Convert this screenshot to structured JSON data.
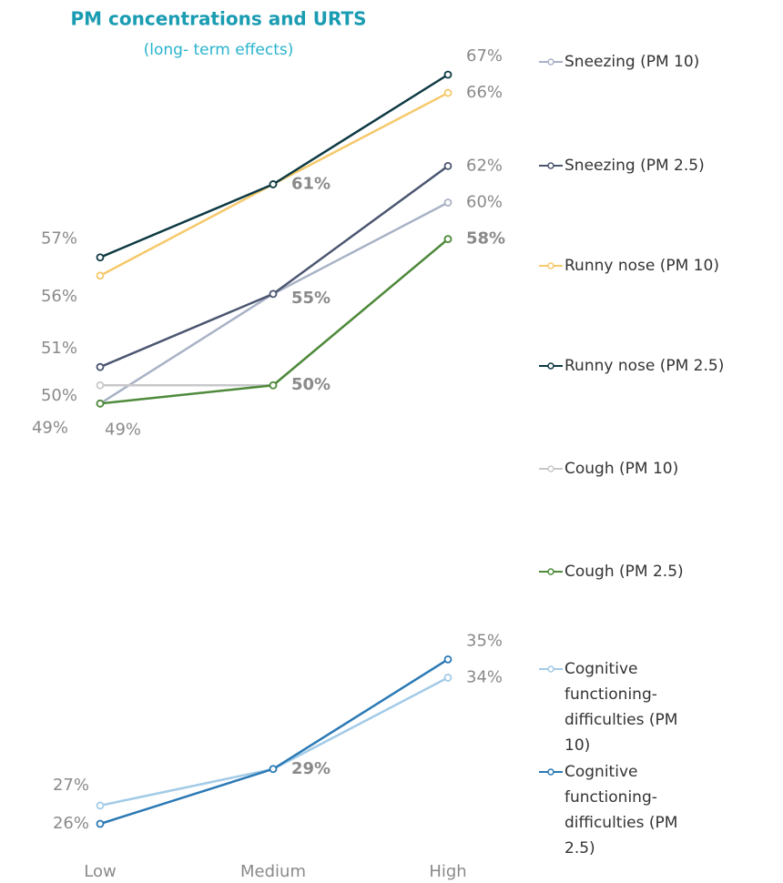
{
  "chart_data": {
    "type": "line",
    "title": "PM concentrations and URTS",
    "subtitle": "(long- term effects)",
    "categories": [
      "Low",
      "Medium",
      "High"
    ],
    "series": [
      {
        "name": "Sneezing (PM 10)",
        "color": "#a9b3c6",
        "values": [
          49,
          55,
          60
        ],
        "value_labels": [
          "49%",
          null,
          "60%"
        ]
      },
      {
        "name": "Sneezing (PM 2.5)",
        "color": "#4b5670",
        "values": [
          51,
          55,
          62
        ],
        "value_labels": [
          "51%",
          "55%",
          "62%"
        ]
      },
      {
        "name": "Runny nose (PM 10)",
        "color": "#f6c96b",
        "values": [
          56,
          61,
          66
        ],
        "value_labels": [
          "56%",
          null,
          "66%"
        ]
      },
      {
        "name": "Runny nose (PM 2.5)",
        "color": "#0e3a43",
        "values": [
          57,
          61,
          67
        ],
        "value_labels": [
          "57%",
          "61%",
          "67%"
        ]
      },
      {
        "name": "Cough (PM 10)",
        "color": "#c8c8cc",
        "values": [
          50,
          50,
          58
        ],
        "value_labels": [
          "50%",
          null,
          null
        ]
      },
      {
        "name": "Cough (PM 2.5)",
        "color": "#4e8a3a",
        "values": [
          49,
          50,
          58
        ],
        "value_labels": [
          "49%",
          "50%",
          "58%"
        ]
      },
      {
        "name": "Cognitive functioning-difficulties (PM 10)",
        "color": "#a3cbe7",
        "values": [
          27,
          29,
          34
        ],
        "value_labels": [
          "27%",
          null,
          "34%"
        ]
      },
      {
        "name": "Cognitive functioning-difficulties (PM 2.5)",
        "color": "#2b79b5",
        "values": [
          26,
          29,
          35
        ],
        "value_labels": [
          "26%",
          "29%",
          "35%"
        ]
      }
    ]
  }
}
